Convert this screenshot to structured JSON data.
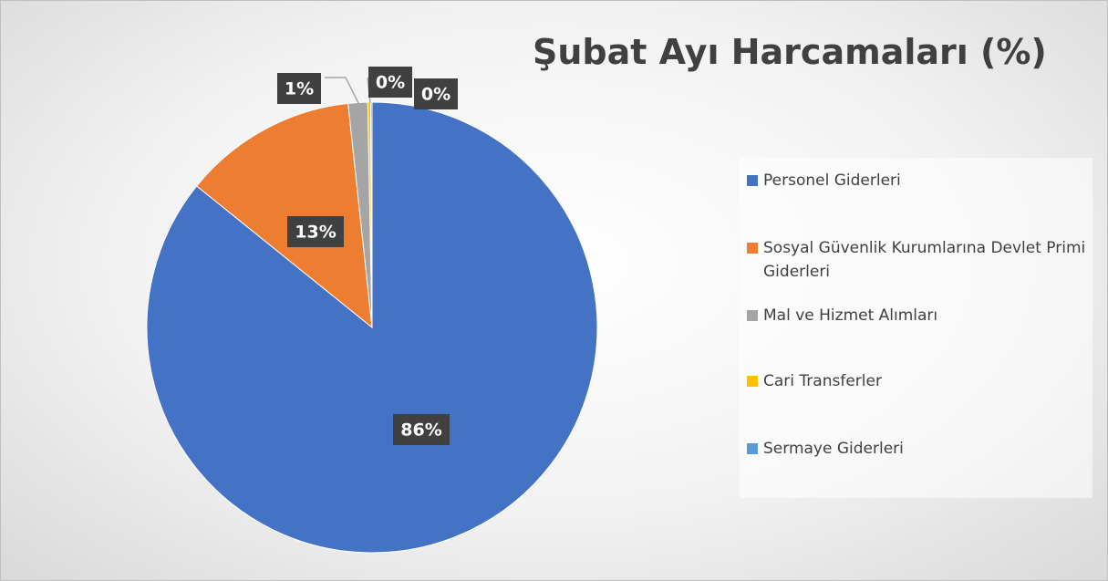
{
  "chart_data": {
    "type": "pie",
    "title": "Şubat Ayı Harcamaları (%)",
    "categories": [
      "Personel Giderleri",
      "Sosyal Güvenlik Kurumlarına Devlet Primi Giderleri",
      "Mal ve Hizmet Alımları",
      "Cari Transferler",
      "Sermaye Giderleri"
    ],
    "values": [
      85.8,
      12.5,
      1.4,
      0.2,
      0.1
    ],
    "value_labels": [
      "86%",
      "13%",
      "1%",
      "0%",
      "0%"
    ],
    "colors": [
      "#4472c4",
      "#ed7d31",
      "#a5a5a5",
      "#ffc000",
      "#5b9bd5"
    ],
    "legend": "right"
  }
}
